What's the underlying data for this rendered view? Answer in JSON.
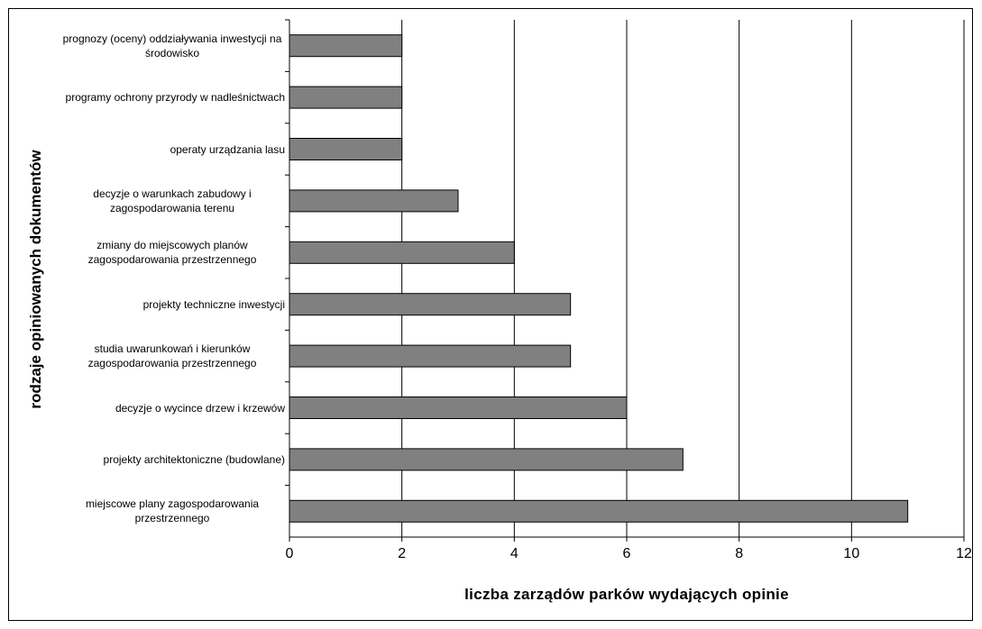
{
  "chart_data": {
    "type": "bar",
    "orientation": "horizontal",
    "categories": [
      "prognozy (oceny) oddziaływania inwestycji na środowisko",
      "programy ochrony przyrody w nadleśnictwach",
      "operaty urządzania lasu",
      "decyzje o warunkach zabudowy i zagospodarowania terenu",
      "zmiany do miejscowych planów zagospodarowania przestrzennego",
      "projekty techniczne inwestycji",
      "studia uwarunkowań i kierunków zagospodarowania przestrzennego",
      "decyzje o wycince drzew i krzewów",
      "projekty architektoniczne (budowlane)",
      "miejscowe plany zagospodarowania przestrzennego"
    ],
    "values": [
      2,
      2,
      2,
      3,
      4,
      5,
      5,
      6,
      7,
      11
    ],
    "color": "#808080",
    "xlabel": "liczba zarządów parków wydających opinie",
    "ylabel": "rodzaje opiniowanych dokumentów",
    "xlim": [
      0,
      12
    ],
    "xticks": [
      0,
      2,
      4,
      6,
      8,
      10,
      12
    ],
    "grid": true
  }
}
